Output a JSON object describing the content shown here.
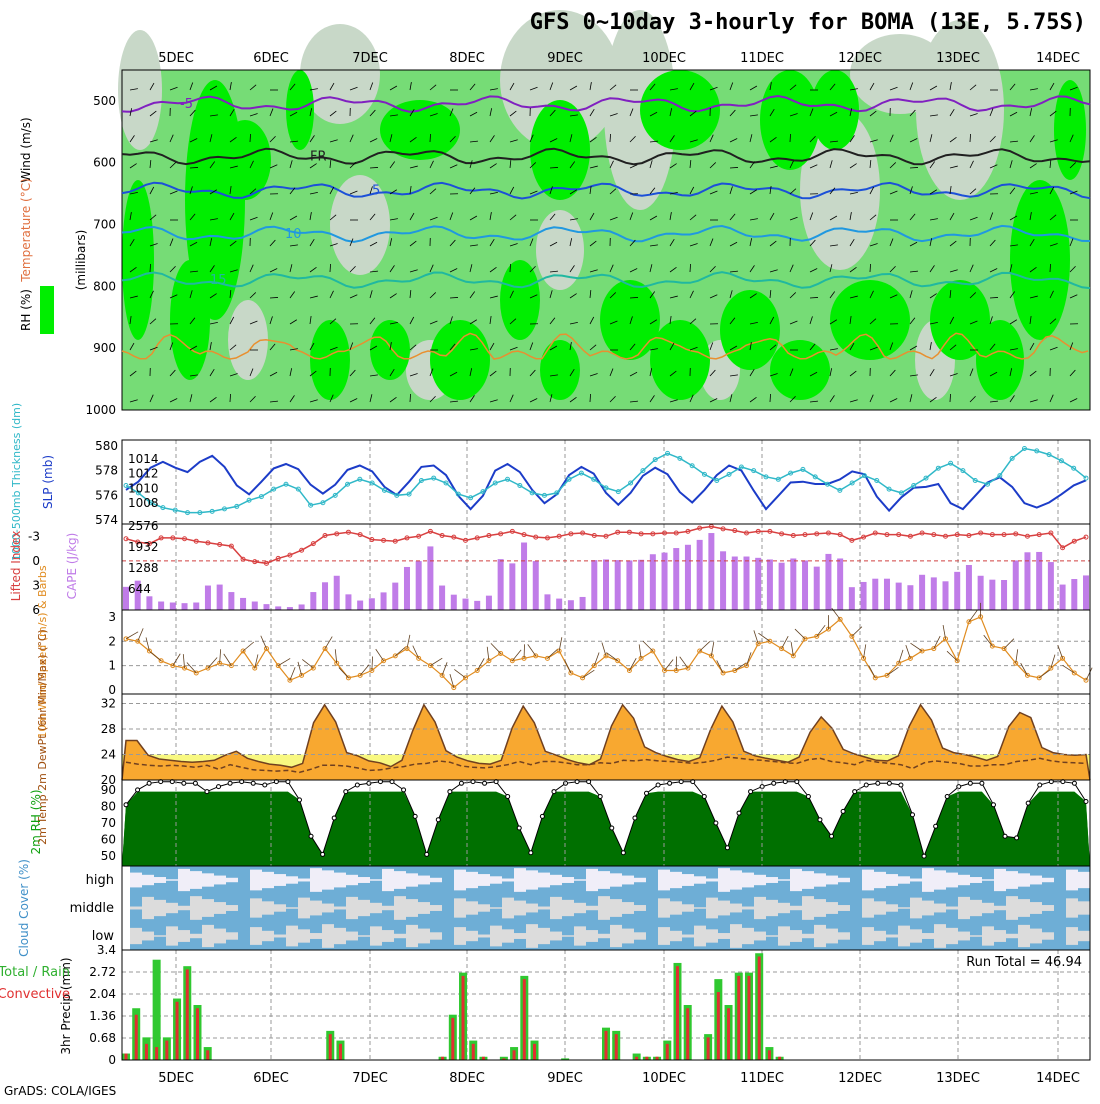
{
  "title": "GFS 0~10day 3-hourly for BOMA (13E, 5.75S)",
  "footer": "GrADS: COLA/IGES",
  "run_total_label": "Run Total = 46.94",
  "colors": {
    "rh_dark": "#00ee00",
    "rh_mid": "#76dc76",
    "rh_light": "#c8d8c8",
    "slp": "#1c3cc8",
    "thickness": "#30b8c8",
    "lifted": "#d84040",
    "cape": "#c07ce8",
    "wind": "#e08c20",
    "temp_dark": "#ec6010",
    "temp_mid": "#f8a830",
    "rh2m": "#10a010",
    "cloud_blue": "#6eaed6",
    "cloud_gray": "#dcdcdc",
    "precip_total": "#30c830",
    "precip_conv": "#e03030"
  },
  "x_axis": {
    "labels": [
      "5DEC",
      "6DEC",
      "7DEC",
      "8DEC",
      "9DEC",
      "10DEC",
      "11DEC",
      "12DEC",
      "13DEC",
      "14DEC"
    ]
  },
  "chart_data": [
    {
      "type": "heatmap",
      "panel": "upper-air",
      "ylabel": "(millibars)",
      "side_labels": [
        "Wind (m/s)",
        "Temperature (°C)",
        "RH (%)"
      ],
      "y_ticks": [
        500,
        600,
        700,
        800,
        900,
        1000
      ],
      "ylim": [
        1000,
        450
      ],
      "isotherms": [
        {
          "label": "-5",
          "pressure": 505
        },
        {
          "label": "FR",
          "pressure": 590
        },
        {
          "label": "5",
          "pressure": 645
        },
        {
          "label": "10",
          "pressure": 715
        },
        {
          "label": "15",
          "pressure": 790
        }
      ]
    },
    {
      "type": "line",
      "panel": "slp-thickness",
      "ylabel_left": "1000-500mb Thickness (dm)",
      "ylabel_right": "SLP (mb)",
      "y_ticks_left": [
        574,
        576,
        578,
        580
      ],
      "y_ticks_right": [
        1008,
        1010,
        1012,
        1014
      ],
      "series": [
        {
          "name": "SLP",
          "axis": "right",
          "values": [
            1009.8,
            1010.9,
            1012.8,
            1013.6,
            1012.8,
            1012.2,
            1013.6,
            1014.4,
            1012.9,
            1010.4,
            1009.2,
            1010.9,
            1012.7,
            1013.3,
            1012.6,
            1010.5,
            1009.3,
            1010.5,
            1012.5,
            1013.1,
            1012.3,
            1010.2,
            1009.1,
            1010.9,
            1012.9,
            1013.1,
            1011.8,
            1009.0,
            1007.2,
            1009.0,
            1012.4,
            1013.3,
            1012.2,
            1009.8,
            1008.0,
            1009.2,
            1011.8,
            1012.9,
            1012.0,
            1009.4,
            1007.8,
            1009.4,
            1011.7,
            1012.8,
            1011.9,
            1009.5,
            1008.1,
            1009.8,
            1011.8,
            1013.1,
            1012.4,
            1009.7,
            1007.2,
            1009.0,
            1010.8,
            1010.9,
            1010.6,
            1010.6,
            1011.2,
            1012.3,
            1011.9,
            1008.9,
            1007.0,
            1008.8,
            1010.1,
            1010.2,
            1010.6,
            1008.0,
            1007.2,
            1009.0,
            1010.8,
            1011.5,
            1010.2,
            1008.0,
            1007.4,
            1008.1,
            1009.2,
            1010.4,
            1011.1
          ]
        },
        {
          "name": "Thickness",
          "axis": "left",
          "values": [
            576.8,
            576.2,
            575.4,
            575.0,
            574.8,
            574.6,
            574.6,
            574.7,
            574.9,
            575.1,
            575.6,
            575.9,
            576.5,
            576.9,
            576.5,
            575.2,
            575.4,
            576.0,
            576.9,
            577.3,
            577.0,
            576.4,
            576.0,
            576.1,
            577.2,
            577.4,
            577.0,
            576.1,
            575.8,
            576.3,
            577.0,
            577.3,
            576.8,
            576.2,
            576.0,
            576.2,
            577.3,
            577.8,
            577.3,
            576.6,
            576.3,
            577.0,
            578.0,
            578.9,
            579.4,
            579.0,
            578.4,
            577.7,
            577.2,
            577.7,
            578.3,
            578.0,
            577.5,
            577.3,
            577.8,
            578.1,
            577.5,
            576.9,
            576.4,
            577.0,
            577.6,
            577.2,
            576.5,
            576.2,
            576.8,
            577.4,
            578.2,
            578.6,
            578.0,
            577.2,
            576.9,
            577.6,
            579.0,
            579.8,
            579.6,
            579.3,
            578.8,
            578.2,
            577.4
          ]
        }
      ]
    },
    {
      "type": "bar",
      "panel": "cape-lifted",
      "ylabel_left": "Lifted Index",
      "ylabel_right": "CAPE (J/kg)",
      "y_ticks_left": [
        -3,
        0,
        3,
        6
      ],
      "y_ticks_right": [
        644,
        1288,
        1932,
        2576
      ],
      "series": [
        {
          "name": "CAPE",
          "values": [
            710,
            900,
            420,
            260,
            230,
            210,
            230,
            750,
            780,
            550,
            370,
            260,
            180,
            110,
            90,
            170,
            550,
            850,
            1050,
            480,
            290,
            360,
            540,
            840,
            1320,
            1500,
            1950,
            750,
            470,
            350,
            280,
            440,
            1560,
            1430,
            2070,
            1500,
            480,
            350,
            300,
            400,
            1530,
            1550,
            1530,
            1520,
            1540,
            1710,
            1760,
            1900,
            2000,
            2150,
            2360,
            1800,
            1640,
            1640,
            1600,
            1550,
            1450,
            1580,
            1520,
            1330,
            1720,
            1580,
            700,
            860,
            960,
            960,
            840,
            760,
            1080,
            1000,
            880,
            1170,
            1380,
            1050,
            930,
            920,
            1520,
            1770,
            1780,
            1470,
            780,
            950,
            1060
          ]
        },
        {
          "name": "Lifted Index",
          "values": [
            -2.7,
            -2.3,
            -2.1,
            -2.8,
            -2.8,
            -2.7,
            -2.4,
            -2.2,
            -2.0,
            -1.8,
            -0.2,
            0.1,
            0.3,
            -0.3,
            -0.7,
            -1.3,
            -2.1,
            -3.1,
            -3.3,
            -3.5,
            -3.2,
            -2.6,
            -2.5,
            -2.4,
            -2.8,
            -3.0,
            -3.6,
            -3.1,
            -2.9,
            -2.5,
            -2.8,
            -3.1,
            -3.3,
            -3.6,
            -3.2,
            -2.9,
            -2.8,
            -3.0,
            -3.3,
            -3.4,
            -3.1,
            -3.0,
            -3.5,
            -3.5,
            -3.3,
            -3.3,
            -3.4,
            -3.4,
            -3.6,
            -4.0,
            -4.2,
            -3.9,
            -3.7,
            -3.4,
            -3.6,
            -3.6,
            -3.3,
            -3.1,
            -3.2,
            -3.3,
            -3.4,
            -3.2,
            -2.5,
            -2.9,
            -3.4,
            -3.2,
            -3.2,
            -3.0,
            -3.4,
            -3.2,
            -3.0,
            -3.2,
            -3.1,
            -3.4,
            -3.2,
            -3.2,
            -3.3,
            -3.0,
            -3.2,
            -3.4,
            -1.6,
            -2.4,
            -2.9
          ]
        }
      ]
    },
    {
      "type": "line",
      "panel": "10m-wind",
      "ylabel": "10m Wind Speed (m/s) & Barbs",
      "y_ticks": [
        0,
        1,
        2,
        3
      ],
      "series": [
        {
          "name": "10m Wind Speed",
          "values": [
            2.1,
            2.0,
            1.6,
            1.2,
            1.0,
            0.9,
            0.7,
            0.9,
            1.1,
            1.0,
            1.6,
            0.9,
            1.7,
            1.0,
            0.4,
            0.6,
            0.9,
            1.7,
            1.1,
            0.5,
            0.6,
            0.8,
            1.2,
            1.4,
            1.7,
            1.3,
            1.0,
            0.6,
            0.1,
            0.5,
            0.8,
            1.2,
            1.5,
            1.2,
            1.3,
            1.4,
            1.3,
            1.6,
            0.7,
            0.5,
            1.0,
            1.4,
            1.2,
            0.8,
            1.3,
            1.6,
            0.8,
            0.8,
            0.9,
            1.6,
            1.4,
            0.7,
            0.8,
            1.0,
            1.9,
            2.0,
            1.7,
            1.4,
            2.1,
            2.2,
            2.5,
            2.9,
            2.2,
            1.3,
            0.5,
            0.6,
            1.1,
            1.3,
            1.6,
            1.7,
            2.1,
            1.2,
            2.8,
            3.0,
            1.8,
            1.7,
            1.1,
            0.6,
            0.5,
            0.9,
            1.3,
            0.7,
            0.4
          ]
        }
      ]
    },
    {
      "type": "area",
      "panel": "2m-temp",
      "ylabel": "2m Temp 2m DewPt (6hr Min/Max) (°C)",
      "y_ticks": [
        20,
        24,
        28,
        32
      ],
      "series": [
        {
          "name": "2m Temp",
          "values": [
            26.2,
            26.2,
            23.9,
            23.3,
            23.1,
            22.9,
            22.8,
            22.9,
            23.1,
            23.9,
            24.5,
            23.4,
            22.9,
            22.5,
            22.3,
            22.0,
            22.6,
            29.0,
            31.8,
            29.1,
            24.3,
            23.8,
            23.0,
            22.7,
            22.1,
            23.1,
            27.8,
            31.8,
            29.1,
            24.6,
            23.6,
            23.0,
            22.6,
            22.5,
            23.1,
            28.2,
            31.6,
            29.0,
            24.5,
            23.9,
            23.2,
            22.7,
            22.4,
            23.3,
            28.5,
            31.8,
            29.7,
            25.2,
            24.3,
            23.7,
            23.2,
            22.9,
            23.5,
            28.0,
            31.6,
            29.1,
            24.5,
            23.8,
            23.4,
            23.1,
            22.8,
            23.6,
            27.5,
            29.9,
            28.1,
            24.8,
            24.1,
            23.6,
            23.1,
            23.0,
            23.8,
            28.5,
            31.8,
            29.4,
            25.0,
            24.3,
            24.0,
            23.6,
            23.1,
            23.7,
            28.4,
            30.6,
            29.8,
            25.1,
            24.3,
            24.0,
            23.9,
            24.0
          ]
        },
        {
          "name": "2m DewPt",
          "values": [
            22.8,
            22.5,
            22.3,
            22.2,
            22.3,
            22.2,
            22.0,
            22.3,
            21.7,
            22.4,
            22.0,
            21.6,
            21.5,
            21.4,
            21.5,
            21.2,
            21.7,
            22.3,
            22.3,
            22.2,
            21.9,
            21.5,
            21.6,
            21.9,
            22.1,
            22.5,
            22.6,
            23.0,
            22.8,
            22.2,
            22.0,
            21.9,
            22.1,
            22.4,
            22.9,
            22.4,
            22.9,
            22.9,
            22.7,
            22.4,
            22.4,
            22.7,
            22.6,
            23.1,
            23.0,
            23.2,
            23.0,
            22.9,
            22.8,
            22.6,
            22.8,
            23.1,
            23.6,
            23.4,
            23.2,
            23.1,
            22.9,
            22.7,
            22.6,
            23.2,
            23.4,
            22.9,
            22.7,
            22.4,
            23.1,
            22.8,
            22.6,
            22.4,
            21.8,
            22.7,
            23.0,
            22.8,
            22.6,
            22.2,
            22.2,
            22.4,
            22.4,
            22.9,
            23.1,
            23.4,
            23.0,
            22.8,
            22.7,
            22.6
          ]
        }
      ]
    },
    {
      "type": "area",
      "panel": "2m-rh",
      "ylabel": "2m RH (%)",
      "y_ticks": [
        50,
        60,
        70,
        80,
        90
      ],
      "series": [
        {
          "name": "2m RH",
          "values": [
            81,
            90,
            94,
            95,
            95,
            94,
            94,
            89,
            92,
            94,
            95,
            94,
            93,
            95,
            95,
            84,
            62,
            51,
            73,
            89,
            93,
            94,
            95,
            95,
            90,
            74,
            51,
            72,
            89,
            94,
            95,
            94,
            95,
            86,
            67,
            52,
            74,
            89,
            94,
            95,
            95,
            86,
            67,
            52,
            73,
            88,
            93,
            94,
            95,
            95,
            86,
            70,
            55,
            76,
            89,
            92,
            94,
            95,
            95,
            86,
            72,
            62,
            77,
            89,
            93,
            94,
            94,
            93,
            75,
            50,
            68,
            86,
            92,
            94,
            94,
            81,
            62,
            61,
            82,
            93,
            95,
            95,
            94,
            83
          ]
        }
      ]
    },
    {
      "type": "heatmap",
      "panel": "cloud-cover",
      "ylabel": "Cloud Cover (%)",
      "rows": [
        "high",
        "middle",
        "low"
      ]
    },
    {
      "type": "bar",
      "panel": "precip",
      "ylabel": "3hr Precip (mm)",
      "left_labels": [
        "Total / Rain",
        "Convective"
      ],
      "y_ticks": [
        0,
        0.68,
        1.36,
        2.04,
        2.72,
        3.4
      ],
      "series": [
        {
          "name": "Total",
          "values": [
            0.2,
            1.6,
            0.7,
            3.1,
            0.7,
            1.9,
            2.9,
            1.7,
            0.4,
            0,
            0,
            0,
            0,
            0,
            0,
            0,
            0,
            0,
            0,
            0,
            0.9,
            0.6,
            0,
            0,
            0,
            0,
            0,
            0,
            0,
            0,
            0,
            0.1,
            1.4,
            2.7,
            0.6,
            0.1,
            0,
            0.1,
            0.4,
            2.6,
            0.6,
            0,
            0,
            0.05,
            0,
            0,
            0,
            1.0,
            0.9,
            0,
            0.2,
            0.1,
            0.1,
            0.6,
            3.0,
            1.7,
            0,
            0.8,
            2.5,
            1.7,
            2.7,
            2.7,
            3.3,
            0.4,
            0.1,
            0,
            0,
            0,
            0,
            0,
            0,
            0,
            0,
            0,
            0,
            0,
            0,
            0,
            0,
            0,
            0,
            0,
            0,
            0,
            0,
            0,
            0,
            0,
            0,
            0,
            0,
            0,
            0,
            0,
            0
          ]
        },
        {
          "name": "Convective",
          "values": [
            0.2,
            1.4,
            0.5,
            0.4,
            0.6,
            1.8,
            2.8,
            1.6,
            0.3,
            0,
            0,
            0,
            0,
            0,
            0,
            0,
            0,
            0,
            0,
            0,
            0.8,
            0.5,
            0,
            0,
            0,
            0,
            0,
            0,
            0,
            0,
            0,
            0.1,
            1.3,
            2.6,
            0.5,
            0.1,
            0,
            0.05,
            0.3,
            2.5,
            0.5,
            0,
            0,
            0,
            0,
            0,
            0,
            0.9,
            0.8,
            0,
            0.1,
            0.1,
            0.1,
            0.5,
            2.9,
            1.6,
            0,
            0.7,
            2.1,
            1.6,
            2.6,
            2.6,
            3.2,
            0.3,
            0.1,
            0,
            0,
            0,
            0,
            0,
            0,
            0,
            0,
            0,
            0,
            0,
            0,
            0,
            0,
            0,
            0,
            0,
            0,
            0,
            0,
            0,
            0,
            0,
            0,
            0,
            0,
            0,
            0,
            0,
            0
          ]
        }
      ]
    }
  ]
}
